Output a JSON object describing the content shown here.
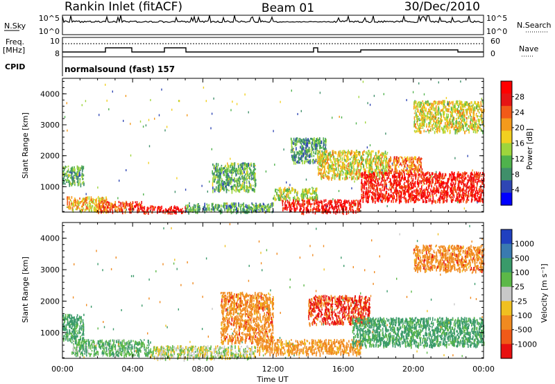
{
  "header": {
    "station": "Rankin Inlet (fitACF)",
    "beam": "Beam 01",
    "date": "30/Dec/2010"
  },
  "top_strip": {
    "nsky_label": "N.Sky",
    "nsky_ticks": [
      "10^5",
      "10^0"
    ],
    "nsearch_label": "N.Search",
    "nsearch_ticks": [
      "10^5",
      "10^0"
    ],
    "freq_label": "Freq.",
    "freq_unit": "[MHz]",
    "freq_ticks": [
      "10",
      "8"
    ],
    "nave_label": "Nave",
    "nave_ticks": [
      "60",
      "0"
    ],
    "cpid_label": "CPID",
    "cpid_value": "normalsound (fast) 157"
  },
  "panels": {
    "power": {
      "ylabel": "Slant Range [km]",
      "colorbar_label": "Power [dB]",
      "colorbar_ticks": [
        "28",
        "24",
        "20",
        "16",
        "12",
        "8",
        "4"
      ]
    },
    "velocity": {
      "ylabel": "Slant Range [km]",
      "colorbar_label": "Velocity [m s⁻¹]",
      "colorbar_ticks": [
        "1000",
        "500",
        "100",
        "25",
        "-25",
        "-100",
        "-500",
        "-1000"
      ]
    }
  },
  "xaxis": {
    "label": "Time UT",
    "ticks": [
      "00:00",
      "04:00",
      "08:00",
      "12:00",
      "16:00",
      "20:00",
      "00:00"
    ]
  },
  "colors": {
    "power_scale": [
      "#0000ff",
      "#2e46b4",
      "#3f8f6a",
      "#4fb24c",
      "#9ed53c",
      "#f2d020",
      "#f49a1c",
      "#f25a18",
      "#e61414",
      "#ff0000"
    ],
    "velocity_scale": [
      "#2040c0",
      "#3a7ab0",
      "#3a9a6a",
      "#5cb848",
      "#c8c8c8",
      "#f0c020",
      "#f08a20",
      "#f05a18",
      "#e81010"
    ]
  },
  "chart_data": [
    {
      "type": "heatmap",
      "title": "",
      "xlabel": "Time UT",
      "ylabel": "Slant Range [km]",
      "xlim": [
        0,
        24
      ],
      "ylim": [
        180,
        4500
      ],
      "x_ticks": [
        "00:00",
        "04:00",
        "08:00",
        "12:00",
        "16:00",
        "20:00",
        "00:00"
      ],
      "y_ticks": [
        1000,
        2000,
        3000,
        4000
      ],
      "colorbar": {
        "label": "Power [dB]",
        "ticks": [
          4,
          8,
          12,
          16,
          20,
          24,
          28
        ],
        "range": [
          0,
          30
        ]
      },
      "regions": [
        {
          "t0": 0.0,
          "t1": 1.2,
          "r0": 1100,
          "r1": 1700,
          "value": 10
        },
        {
          "t0": 0.2,
          "t1": 2.5,
          "r0": 250,
          "r1": 700,
          "value": 18
        },
        {
          "t0": 2.0,
          "t1": 4.5,
          "r0": 220,
          "r1": 550,
          "value": 24
        },
        {
          "t0": 4.5,
          "t1": 7.0,
          "r0": 200,
          "r1": 400,
          "value": 28
        },
        {
          "t0": 7.0,
          "t1": 12.0,
          "r0": 200,
          "r1": 500,
          "value": 9
        },
        {
          "t0": 8.5,
          "t1": 11.0,
          "r0": 900,
          "r1": 1800,
          "value": 10
        },
        {
          "t0": 12.0,
          "t1": 14.5,
          "r0": 600,
          "r1": 1000,
          "value": 14
        },
        {
          "t0": 12.5,
          "t1": 17.0,
          "r0": 200,
          "r1": 600,
          "value": 28
        },
        {
          "t0": 13.0,
          "t1": 15.0,
          "r0": 1800,
          "r1": 2600,
          "value": 8
        },
        {
          "t0": 14.5,
          "t1": 18.5,
          "r0": 1300,
          "r1": 2200,
          "value": 16
        },
        {
          "t0": 17.0,
          "t1": 24.0,
          "r0": 550,
          "r1": 1500,
          "value": 28
        },
        {
          "t0": 18.5,
          "t1": 20.5,
          "r0": 1500,
          "r1": 2000,
          "value": 22
        },
        {
          "t0": 20.0,
          "t1": 24.0,
          "r0": 2800,
          "r1": 3800,
          "value": 16
        }
      ]
    },
    {
      "type": "heatmap",
      "title": "",
      "xlabel": "Time UT",
      "ylabel": "Slant Range [km]",
      "xlim": [
        0,
        24
      ],
      "ylim": [
        180,
        4500
      ],
      "x_ticks": [
        "00:00",
        "04:00",
        "08:00",
        "12:00",
        "16:00",
        "20:00",
        "00:00"
      ],
      "y_ticks": [
        1000,
        2000,
        3000,
        4000
      ],
      "colorbar": {
        "label": "Velocity [m s⁻¹]",
        "ticks": [
          1000,
          500,
          100,
          25,
          -25,
          -100,
          -500,
          -1000
        ]
      },
      "regions": [
        {
          "t0": 0.0,
          "t1": 1.2,
          "r0": 800,
          "r1": 1600,
          "value": 200
        },
        {
          "t0": 0.5,
          "t1": 5.0,
          "r0": 300,
          "r1": 800,
          "value": 80
        },
        {
          "t0": 5.0,
          "t1": 11.0,
          "r0": 200,
          "r1": 600,
          "value": 0
        },
        {
          "t0": 9.0,
          "t1": 12.0,
          "r0": 700,
          "r1": 2300,
          "value": -300
        },
        {
          "t0": 11.0,
          "t1": 17.0,
          "r0": 350,
          "r1": 800,
          "value": -200
        },
        {
          "t0": 14.0,
          "t1": 17.5,
          "r0": 1300,
          "r1": 2200,
          "value": -600
        },
        {
          "t0": 16.5,
          "t1": 24.0,
          "r0": 600,
          "r1": 1500,
          "value": 150
        },
        {
          "t0": 20.0,
          "t1": 24.0,
          "r0": 3000,
          "r1": 3800,
          "value": -300
        }
      ]
    }
  ]
}
